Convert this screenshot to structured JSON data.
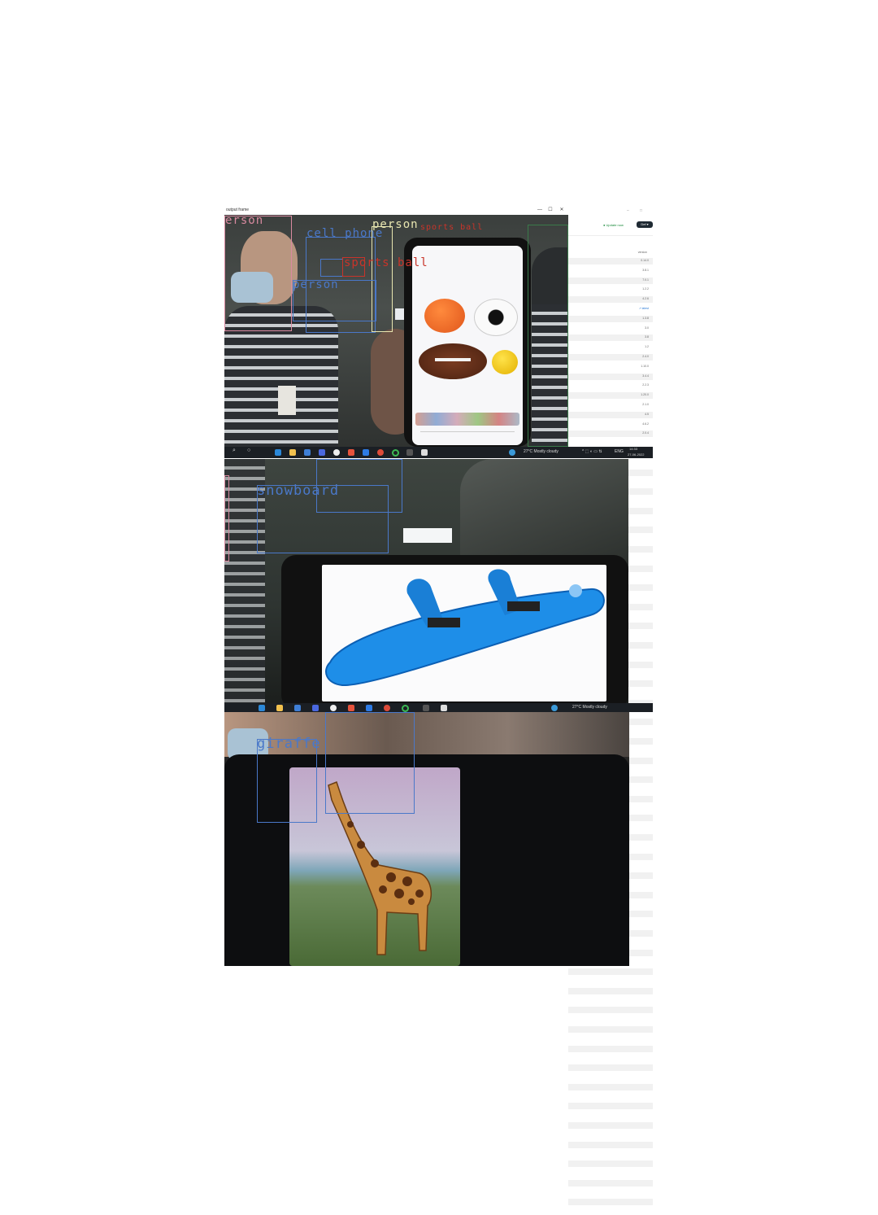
{
  "window": {
    "title": "output frame",
    "controls": [
      "—",
      "☐",
      "✕"
    ]
  },
  "right_pane": {
    "update_label": "Update now",
    "button_label": "Def ▾",
    "column_header": "version",
    "link_text": "↗ latest",
    "values": [
      "0.14.0",
      "3.8.1",
      "7.0.1",
      "1.2.2",
      "4.2.6",
      "",
      "1.3.8",
      "3.0",
      "3.8",
      "1.2",
      "2.4.0",
      "1.10.0",
      "3.4.4",
      "2.2.3",
      "1.20.0",
      "2.1.0",
      "4.5",
      "4.6.2",
      "2.0.4"
    ]
  },
  "colors": {
    "box_person_pink": "#d98aa0",
    "box_blue": "#4a78c9",
    "box_person_yellow": "#e8e6b0",
    "label_red": "#c9342a",
    "taskbar": "#1b1f24"
  },
  "frame1": {
    "detections": [
      {
        "label": "erson",
        "color": "#d98aa0"
      },
      {
        "label": "cell phone",
        "color": "#4a78c9"
      },
      {
        "label": "person",
        "color": "#e8e6b0"
      },
      {
        "label": "sports ball",
        "color": "#c9342a"
      },
      {
        "label": "person",
        "color": "#4a78c9"
      },
      {
        "label": "sports ball",
        "color": "#c9342a"
      }
    ],
    "taskbar": {
      "weather": "27°C  Mostly cloudy",
      "lang": "ENG",
      "time": "14:33",
      "date": "27-06-2022"
    }
  },
  "frame2": {
    "detections": [
      {
        "label": "snowboard",
        "color": "#4a78c9"
      }
    ],
    "taskbar": {
      "weather": "27°C  Mostly cloudy"
    }
  },
  "frame3": {
    "detections": [
      {
        "label": "giraffe",
        "color": "#4a78c9"
      }
    ]
  }
}
